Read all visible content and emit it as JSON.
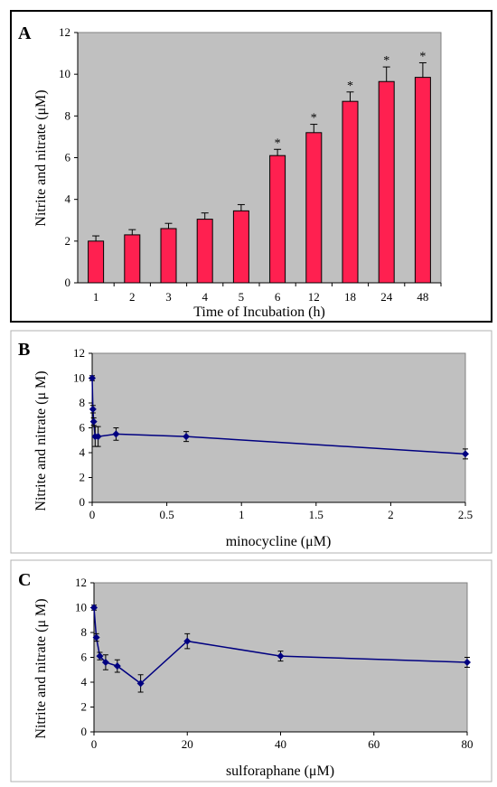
{
  "chart_data": [
    {
      "panel": "A",
      "type": "bar",
      "xlabel": "Time of Incubation (h)",
      "ylabel": "Nitrite and nitrate (μM)",
      "ylim": [
        0,
        12
      ],
      "yticks": [
        "0",
        "2",
        "4",
        "6",
        "8",
        "10",
        "12"
      ],
      "categories": [
        "1",
        "2",
        "3",
        "4",
        "5",
        "6",
        "12",
        "18",
        "24",
        "48"
      ],
      "values": [
        2.0,
        2.3,
        2.6,
        3.05,
        3.45,
        6.1,
        7.2,
        8.7,
        9.65,
        9.85
      ],
      "errors": [
        0.25,
        0.25,
        0.25,
        0.3,
        0.3,
        0.3,
        0.4,
        0.45,
        0.7,
        0.7
      ],
      "significance": [
        "",
        "",
        "",
        "",
        "",
        "*",
        "*",
        "*",
        "*",
        "*"
      ],
      "bar_color": "#ff2050",
      "plot_bg": "#c0c0c0",
      "grid": false
    },
    {
      "panel": "B",
      "type": "line",
      "xlabel": "minocycline (μM)",
      "ylabel": "Nitrite and nitrate (μ M)",
      "xlim": [
        0,
        2.5
      ],
      "ylim": [
        0,
        12
      ],
      "xticks": [
        "0",
        "0.5",
        "1",
        "1.5",
        "2",
        "2.5"
      ],
      "yticks": [
        "0",
        "2",
        "4",
        "6",
        "8",
        "10",
        "12"
      ],
      "series": [
        {
          "x": [
            0,
            0.005,
            0.01,
            0.02,
            0.04,
            0.16,
            0.63,
            2.5
          ],
          "y": [
            10.0,
            7.5,
            6.5,
            5.3,
            5.3,
            5.5,
            5.3,
            3.9
          ],
          "errors": [
            0.2,
            0.3,
            0.3,
            0.8,
            0.8,
            0.5,
            0.4,
            0.4
          ]
        }
      ],
      "line_color": "#000080",
      "plot_bg": "#c0c0c0",
      "grid": false
    },
    {
      "panel": "C",
      "type": "line",
      "xlabel": "sulforaphane (μM)",
      "ylabel": "Nitrite and nitrate (μ M)",
      "xlim": [
        0,
        80
      ],
      "ylim": [
        0,
        12
      ],
      "xticks": [
        "0",
        "20",
        "40",
        "60",
        "80"
      ],
      "yticks": [
        "0",
        "2",
        "4",
        "6",
        "8",
        "10",
        "12"
      ],
      "series": [
        {
          "x": [
            0,
            0.5,
            1.25,
            2.5,
            5,
            10,
            20,
            40,
            80
          ],
          "y": [
            10.0,
            7.6,
            6.1,
            5.6,
            5.3,
            3.9,
            7.3,
            6.1,
            5.6
          ],
          "errors": [
            0.2,
            0.3,
            0.3,
            0.6,
            0.5,
            0.7,
            0.6,
            0.4,
            0.4
          ]
        }
      ],
      "line_color": "#000080",
      "plot_bg": "#c0c0c0",
      "grid": false
    }
  ]
}
